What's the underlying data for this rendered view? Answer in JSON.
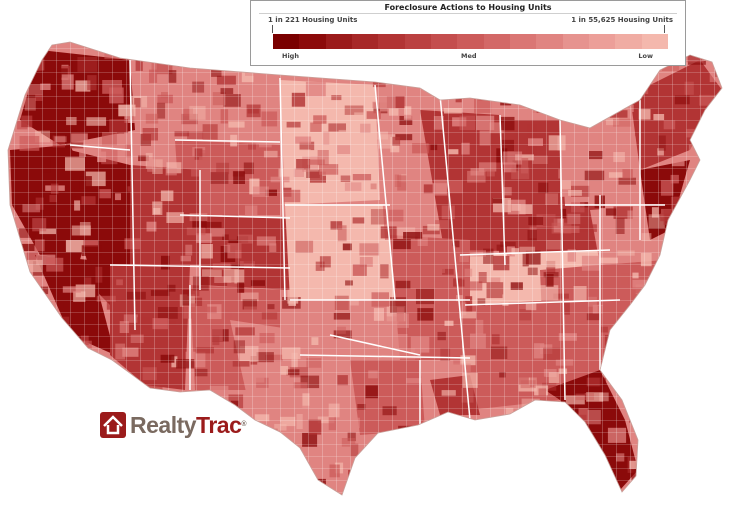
{
  "legend": {
    "title": "Foreclosure Actions to Housing Units",
    "end_left": "1 in 221 Housing Units",
    "end_right": "1 in 55,625 Housing Units",
    "scale_high": "High",
    "scale_med": "Med",
    "scale_low": "Low",
    "scale_colors": [
      "#7a0000",
      "#8c0a0a",
      "#9b1b1b",
      "#a72828",
      "#b23434",
      "#bb4141",
      "#c44e4e",
      "#cc5b5a",
      "#d36867",
      "#da7674",
      "#e08481",
      "#e6938f",
      "#ec9f99",
      "#f0aca3",
      "#f4b8ad"
    ]
  },
  "logo": {
    "name": "RealtyTrac",
    "part1": "Realty",
    "part2": "Trac",
    "mark": "®",
    "icon": "house-logo-icon"
  },
  "map": {
    "region": "contiguous United States by county",
    "colors": {
      "high": "#8b0a0a",
      "medhigh": "#b23434",
      "med": "#cc5b5a",
      "medlow": "#e08481",
      "low": "#f4b8ad",
      "county_border": "#ffffff",
      "state_border": "#ffffff"
    }
  }
}
